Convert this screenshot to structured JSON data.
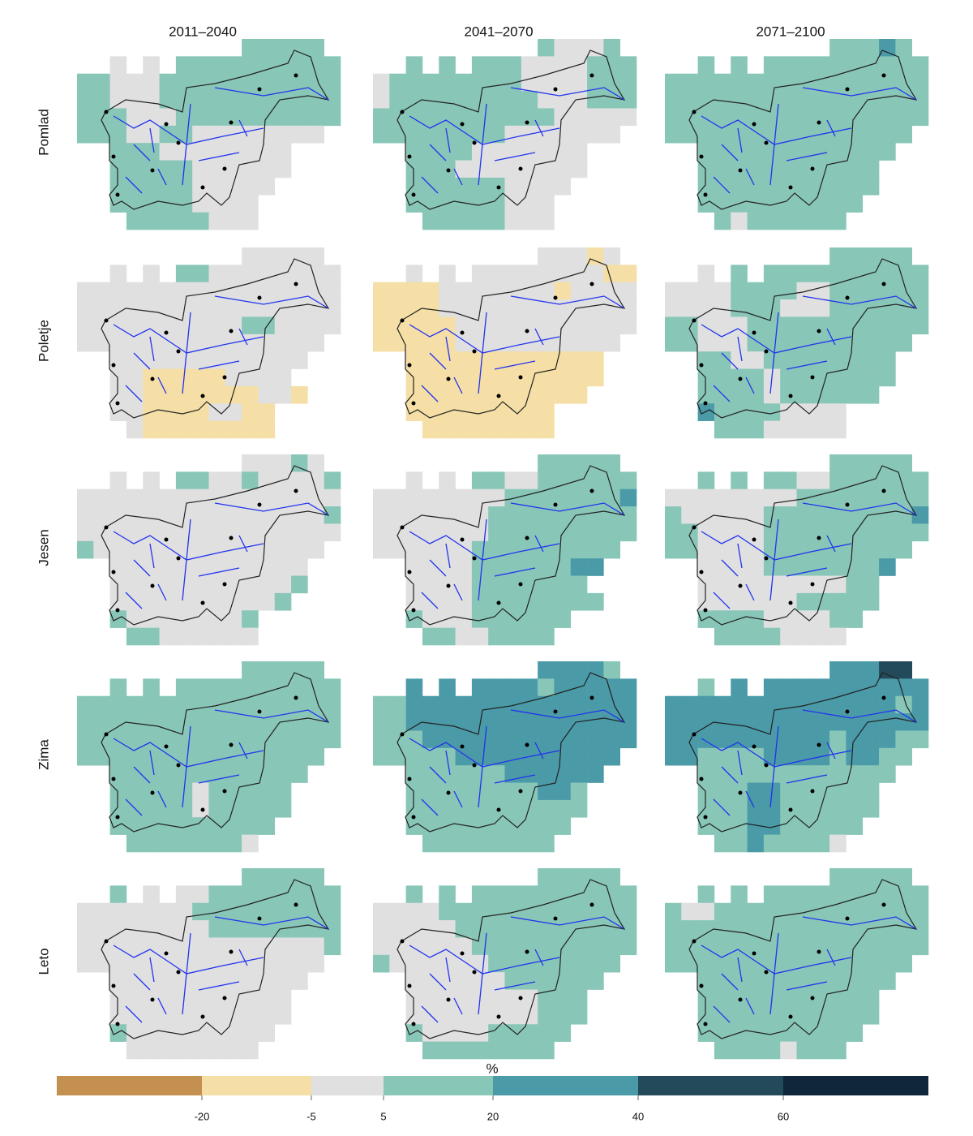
{
  "columns": [
    "2011–2040",
    "2041–2070",
    "2071–2100"
  ],
  "rows": [
    "Pomlad",
    "Poletje",
    "Jesen",
    "Zima",
    "Leto"
  ],
  "panels": [
    [
      [
        "..........33333.",
        "..2.2.3333333333",
        "3322233333333333",
        "3322233333333333",
        "3332223333333333",
        "333223322222222.",
        "..33322222222...",
        "..33333222222...",
        "..3333322222....",
        "..333332222.....",
        "...33333222....."
      ],
      [
        "..........32223.",
        "..3.3.3332222333",
        "2333333332222333",
        "2333333333222333",
        "3333333333322222",
        "333333332222222.",
        "..33332222222...",
        "..33322222222...",
        "..3333332222....",
        "..333333222.....",
        "...33333222....."
      ],
      [
        "..........33343.",
        "..3.3.3333333333",
        "3333333333333333",
        "3333333333333333",
        "3333333333333333",
        "333333333333333.",
        "..333333333333..",
        "..33333333333...",
        "..33333333333...",
        "..3333333333....",
        "...32333333....."
      ]
    ],
    [
      [
        "..........22222.",
        "..2.2.3322222222",
        "2222222222222222",
        "2222222222222222",
        "2222222222332222",
        "222222222222222.",
        "..222222222222..",
        "..22111112222...",
        "..221111111221..",
        "..2211112211....",
        "...211111111...."
      ],
      [
        "..........22212.",
        "..2.2.2222222211",
        "1111222222212222",
        "1111222222222222",
        "1111122222222222",
        "111112222222222.",
        "..111111111111..",
        "..111111111111..",
        "..11111111111...",
        "..111111111.....",
        "...11111111....."
      ],
      [
        "..........33333.",
        "..2.3.3333333333",
        "2222333322333333",
        "2222333222333333",
        "3322233333333333",
        "332223333333333.",
        "..332233333333..",
        "..333323333333..",
        "..33332333333...",
        "..433332222.....",
        "...33322222....."
      ]
    ],
    [
      [
        "..........22232.",
        "..2.2.3322322223",
        "2222222222222222",
        "2222222222222223",
        "2222222222222222",
        "322222222222222.",
        "..222222222222..",
        "..222222222223..",
        "..22222222223...",
        "..322222223.....",
        "...33222222....."
      ],
      [
        "..........33333.",
        "..2.2.3322333333",
        "2222222233333334",
        "2222222333333333",
        "2222222333333333",
        "222222333333333.",
        "..222233333344..",
        "..22223333333...",
        "..222233333333..",
        "..3222333333....",
        "...33223333....."
      ],
      [
        "..........33333.",
        "..3.3.3322333333",
        "2222222233333333",
        "3222223333333334",
        "3322223333333333",
        "332222333333333.",
        "..222233333334..",
        "..22222222233...",
        "..22222233333...",
        "..3333222233....",
        "...33332222....."
      ]
    ],
    [
      [
        "..........33333.",
        "..3.3.3333333333",
        "3333333333333333",
        "3333333333333333",
        "3333333333333333",
        "333333333333333.",
        "..333333333333..",
        "..33333233333...",
        "..33333233333...",
        "..3333333333....",
        "...33333332....."
      ],
      [
        "..........44443.",
        "..4.4.4444344444",
        "3344444444444444",
        "3344444444444444",
        "3334444444444444",
        "333334444444444.",
        "..333333444444..",
        "..33333333443...",
        "..33333333333...",
        "..3333333333....",
        "...33333333....."
      ],
      [
        "..........44455.",
        "..3.4.4444444444",
        "4444444444444434",
        "4444444444444444",
        "4444444444344433",
        "443333444434433.",
        "..333333333333..",
        "..33344333333...",
        "..33344333333...",
        "..3334433333....",
        "...33433332....."
      ]
    ],
    [
      [
        "..........33333.",
        "..3.2.2233333333",
        "2222222333333333",
        "2222222233333333",
        "2222222222222223",
        "222222222222222.",
        "..222222222222..",
        "..22222222222...",
        "..22222222222...",
        "..3222222222....",
        "...22222222....."
      ],
      [
        "..........33333.",
        "..3.3.3333333333",
        "2222333333333333",
        "2222233333333333",
        "2222223333333333",
        "322222233333333.",
        "..222222333333..",
        "..22222222333...",
        "..22222222333...",
        "..3222233333....",
        "...33333333....."
      ],
      [
        "..........33333.",
        "..3.3.3333333333",
        "3223333333333333",
        "3333333333333333",
        "3333333333333333",
        "333333333333333.",
        "..333333333333..",
        "..33333333333...",
        "..33333333333...",
        "..3333333333....",
        "...33332333....."
      ]
    ]
  ],
  "legend": {
    "title": "%",
    "colors": [
      "#c4904f",
      "#f5dfa6",
      "#e0e0e0",
      "#88c6b8",
      "#4a9aa8",
      "#234a5a",
      "#10263a"
    ],
    "ticks": [
      -20,
      -5,
      5,
      20,
      40,
      60
    ]
  }
}
